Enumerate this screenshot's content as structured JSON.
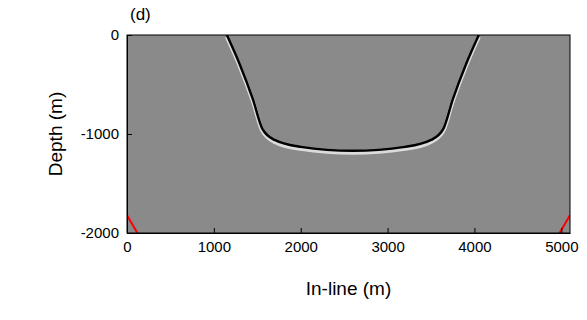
{
  "chart_data": {
    "type": "line",
    "title": "(d)",
    "x_label": "In-line (m)",
    "y_label": "Depth (m)",
    "xlim": [
      0,
      5100
    ],
    "ylim": [
      -2000,
      0
    ],
    "xticks": [
      0,
      1000,
      2000,
      3000,
      4000,
      5000
    ],
    "yticks": [
      -2000,
      -1000,
      0
    ],
    "series": [
      {
        "color": "#000000",
        "x": [
          1150,
          1300,
          1450,
          1560,
          1700,
          2000,
          2600,
          3200,
          3500,
          3640,
          3750,
          3900,
          4050
        ],
        "values": [
          0,
          -300,
          -650,
          -950,
          -1060,
          -1130,
          -1170,
          -1130,
          -1060,
          -950,
          -650,
          -300,
          0
        ]
      },
      {
        "color": "#ff0000",
        "x": [
          0,
          120
        ],
        "values": [
          -1820,
          -2000
        ]
      },
      {
        "color": "#ff0000",
        "x": [
          4980,
          5100
        ],
        "values": [
          -2000,
          -1820
        ]
      }
    ]
  }
}
